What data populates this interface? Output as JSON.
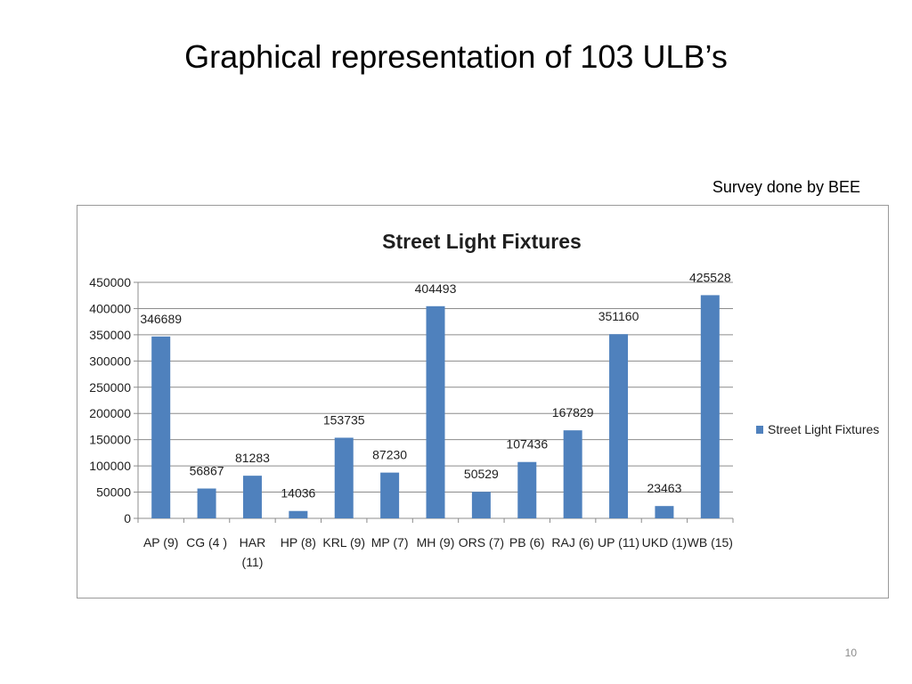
{
  "slide": {
    "title": "Graphical representation of 103 ULB’s",
    "survey_note": "Survey done by BEE",
    "page_number": "10"
  },
  "colors": {
    "bar": "#4f81bd",
    "gridline": "#8c8c8c",
    "axis": "#8c8c8c",
    "frame": "#9a9a9a"
  },
  "chart_data": {
    "type": "bar",
    "title": "Street Light Fixtures",
    "xlabel": "",
    "ylabel": "",
    "categories": [
      "AP (9)",
      "CG (4 )",
      "HAR (11)",
      "HP (8)",
      "KRL (9)",
      "MP (7)",
      "MH (9)",
      "ORS (7)",
      "PB (6)",
      "RAJ (6)",
      "UP (11)",
      "UKD (1)",
      "WB (15)"
    ],
    "category_lines": [
      [
        "AP (9)"
      ],
      [
        "CG (4 )"
      ],
      [
        "HAR",
        "(11)"
      ],
      [
        "HP (8)"
      ],
      [
        "KRL (9)"
      ],
      [
        "MP (7)"
      ],
      [
        "MH (9)"
      ],
      [
        "ORS (7)"
      ],
      [
        "PB (6)"
      ],
      [
        "RAJ (6)"
      ],
      [
        "UP (11)"
      ],
      [
        "UKD (1)"
      ],
      [
        "WB (15)"
      ]
    ],
    "series": [
      {
        "name": "Street Light Fixtures",
        "values": [
          346689,
          56867,
          81283,
          14036,
          153735,
          87230,
          404493,
          50529,
          107436,
          167829,
          351160,
          23463,
          425528
        ]
      }
    ],
    "data_labels": [
      "346689",
      "56867",
      "81283",
      "14036",
      "153735",
      "87230",
      "404493",
      "50529",
      "107436",
      "167829",
      "351160",
      "23463",
      "425528"
    ],
    "ylim": [
      0,
      450000
    ],
    "yticks": [
      0,
      50000,
      100000,
      150000,
      200000,
      250000,
      300000,
      350000,
      400000,
      450000
    ],
    "grid": true,
    "legend_position": "right"
  }
}
